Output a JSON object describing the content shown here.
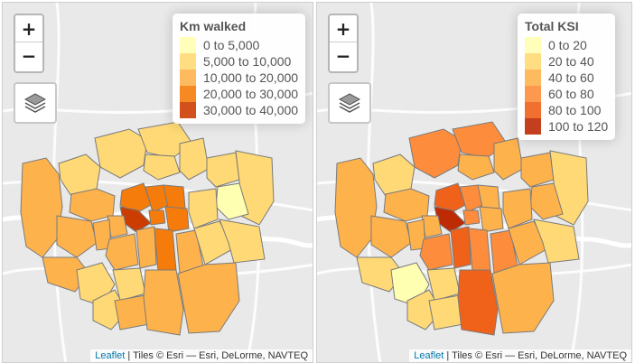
{
  "colors": {
    "c1": "#ffffb2",
    "c2": "#fed976",
    "c3": "#feb24c",
    "c4": "#fd8d3c",
    "c5": "#f03b20",
    "c6": "#bd0026",
    "land": "#e9e9e9",
    "road": "#ffffff",
    "border": "#8a8a8a"
  },
  "maps": [
    {
      "legend": {
        "title": "Km walked",
        "items": [
          {
            "label": "0 to 5,000",
            "color": "#ffffb2"
          },
          {
            "label": "5,000 to 10,000",
            "color": "#fed976"
          },
          {
            "label": "10,000 to 20,000",
            "color": "#feb24c"
          },
          {
            "label": "20,000 to 30,000",
            "color": "#f57c0b"
          },
          {
            "label": "30,000 to 40,000",
            "color": "#cc3d02"
          }
        ]
      },
      "attribution": {
        "link": "Leaflet",
        "text": " | Tiles © Esri — Esri, DeLorme, NAVTEQ"
      }
    },
    {
      "legend": {
        "title": "Total KSI",
        "items": [
          {
            "label": "0 to 20",
            "color": "#ffffb2"
          },
          {
            "label": "20 to 40",
            "color": "#fed976"
          },
          {
            "label": "40 to 60",
            "color": "#feb24c"
          },
          {
            "label": "60 to 80",
            "color": "#fd8d3c"
          },
          {
            "label": "80 to 100",
            "color": "#f0611a"
          },
          {
            "label": "100 to 120",
            "color": "#bd2a04"
          }
        ]
      },
      "attribution": {
        "link": "Leaflet",
        "text": " | Tiles © Esri — Esri, DeLorme, NAVTEQ"
      }
    }
  ],
  "zoom": {
    "in_label": "+",
    "out_label": "−"
  }
}
